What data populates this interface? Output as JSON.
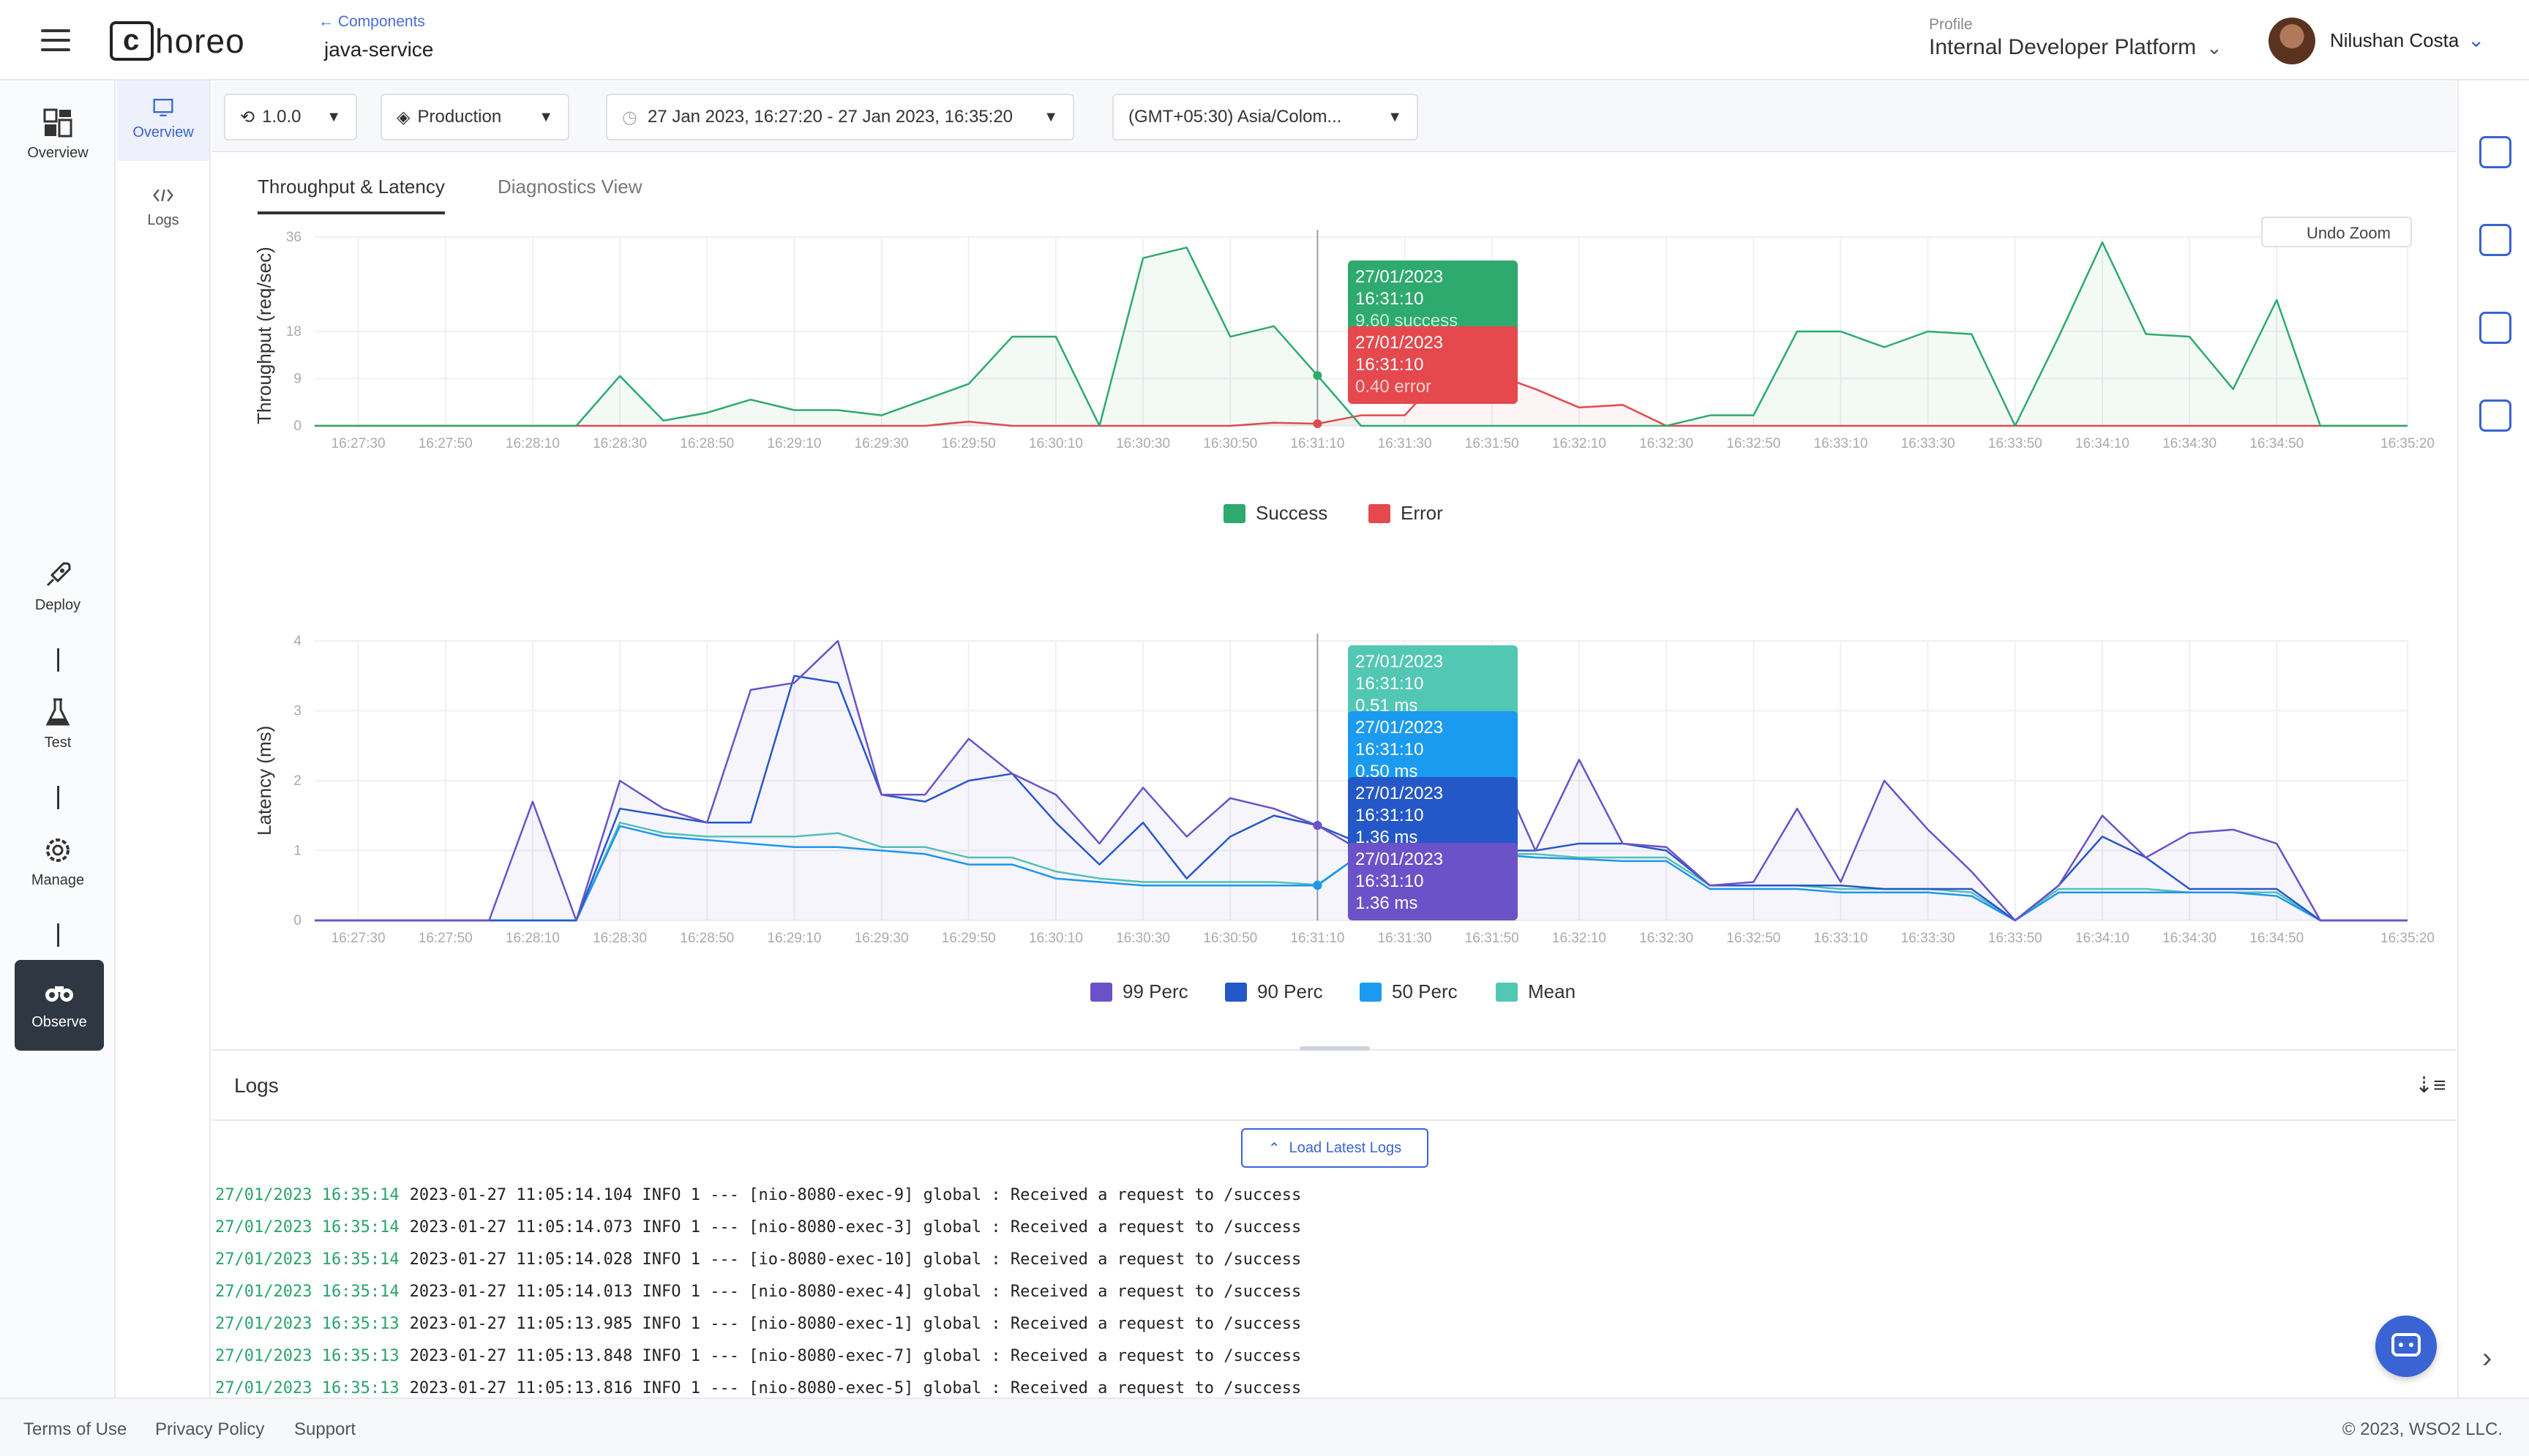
{
  "header": {
    "logo_text": "horeo",
    "breadcrumb_back": "← Components",
    "component_name": "java-service",
    "profile_label": "Profile",
    "profile_value": "Internal Developer Platform",
    "user_name": "Nilushan Costa"
  },
  "left_nav": {
    "items": [
      {
        "label": "Overview",
        "icon": "overview-icon"
      },
      {
        "label": "Deploy",
        "icon": "rocket-icon"
      },
      {
        "label": "Test",
        "icon": "flask-icon"
      },
      {
        "label": "Manage",
        "icon": "gear-icon"
      },
      {
        "label": "Observe",
        "icon": "binoculars-icon",
        "active": true
      }
    ]
  },
  "sub_nav": {
    "items": [
      {
        "label": "Overview",
        "icon": "monitor-icon",
        "active": true
      },
      {
        "label": "Logs",
        "icon": "code-icon"
      }
    ]
  },
  "filters": {
    "version": "1.0.0",
    "environment": "Production",
    "time_range": "27 Jan 2023, 16:27:20 - 27 Jan 2023, 16:35:20",
    "timezone": "(GMT+05:30) Asia/Colom..."
  },
  "tabs": [
    "Throughput & Latency",
    "Diagnostics View"
  ],
  "undo_zoom": "Undo Zoom",
  "colors": {
    "success": "#2eaa6e",
    "error": "#e5484d",
    "p99": "#6b52c8",
    "p90": "#2458c9",
    "p50": "#1a9bf0",
    "mean": "#52c7b3",
    "accent": "#3a63d3"
  },
  "chart_data": [
    {
      "type": "line",
      "ylabel": "Throughput (req/sec)",
      "x": [
        "16:27:20",
        "16:27:30",
        "16:27:40",
        "16:27:50",
        "16:28:00",
        "16:28:10",
        "16:28:20",
        "16:28:30",
        "16:28:40",
        "16:28:50",
        "16:29:00",
        "16:29:10",
        "16:29:20",
        "16:29:30",
        "16:29:40",
        "16:29:50",
        "16:30:00",
        "16:30:10",
        "16:30:20",
        "16:30:30",
        "16:30:40",
        "16:30:50",
        "16:31:00",
        "16:31:10",
        "16:31:20",
        "16:31:30",
        "16:31:40",
        "16:31:50",
        "16:32:00",
        "16:32:10",
        "16:32:20",
        "16:32:30",
        "16:32:40",
        "16:32:50",
        "16:33:00",
        "16:33:10",
        "16:33:20",
        "16:33:30",
        "16:33:40",
        "16:33:50",
        "16:34:00",
        "16:34:10",
        "16:34:20",
        "16:34:30",
        "16:34:40",
        "16:34:50",
        "16:35:00",
        "16:35:10",
        "16:35:20"
      ],
      "tick_labels": [
        "16:27:30",
        "16:27:50",
        "16:28:10",
        "16:28:30",
        "16:28:50",
        "16:29:10",
        "16:29:30",
        "16:29:50",
        "16:30:10",
        "16:30:30",
        "16:30:50",
        "16:31:10",
        "16:31:30",
        "16:31:50",
        "16:32:10",
        "16:32:30",
        "16:32:50",
        "16:33:10",
        "16:33:30",
        "16:33:50",
        "16:34:10",
        "16:34:30",
        "16:34:50",
        "16:35:20"
      ],
      "y_ticks": [
        "0",
        "9",
        "18",
        "36"
      ],
      "ylim": [
        0,
        36
      ],
      "series": [
        {
          "name": "Success",
          "values": [
            0,
            0,
            0,
            0,
            0,
            0,
            0,
            9.5,
            1,
            2.5,
            5,
            3,
            3,
            2,
            5,
            8,
            17,
            17,
            0,
            32,
            34,
            17,
            19,
            9.6,
            0,
            0,
            0,
            0,
            0,
            0,
            0,
            0,
            2,
            2,
            18,
            18,
            15,
            18,
            17.5,
            0,
            17,
            35,
            17.5,
            17,
            7,
            24,
            0,
            0,
            0
          ]
        },
        {
          "name": "Error",
          "values": [
            0,
            0,
            0,
            0,
            0,
            0,
            0,
            0,
            0,
            0,
            0,
            0,
            0,
            0,
            0,
            0.8,
            0,
            0,
            0,
            0,
            0,
            0,
            0.6,
            0.4,
            2,
            2,
            11,
            10,
            7,
            3.5,
            4,
            0,
            0,
            0,
            0,
            0,
            0,
            0,
            0,
            0,
            0,
            0,
            0,
            0,
            0,
            0,
            0,
            0,
            0
          ]
        }
      ],
      "tooltips": [
        {
          "time": "27/01/2023 16:31:10",
          "value": "9.60 success"
        },
        {
          "time": "27/01/2023 16:31:10",
          "value": "0.40 error"
        }
      ]
    },
    {
      "type": "line",
      "ylabel": "Latency (ms)",
      "x": [
        "16:27:20",
        "16:27:30",
        "16:27:40",
        "16:27:50",
        "16:28:00",
        "16:28:10",
        "16:28:20",
        "16:28:30",
        "16:28:40",
        "16:28:50",
        "16:29:00",
        "16:29:10",
        "16:29:20",
        "16:29:30",
        "16:29:40",
        "16:29:50",
        "16:30:00",
        "16:30:10",
        "16:30:20",
        "16:30:30",
        "16:30:40",
        "16:30:50",
        "16:31:00",
        "16:31:10",
        "16:31:20",
        "16:31:30",
        "16:31:40",
        "16:31:50",
        "16:32:00",
        "16:32:10",
        "16:32:20",
        "16:32:30",
        "16:32:40",
        "16:32:50",
        "16:33:00",
        "16:33:10",
        "16:33:20",
        "16:33:30",
        "16:33:40",
        "16:33:50",
        "16:34:00",
        "16:34:10",
        "16:34:20",
        "16:34:30",
        "16:34:40",
        "16:34:50",
        "16:35:00",
        "16:35:10",
        "16:35:20"
      ],
      "tick_labels": [
        "16:27:30",
        "16:27:50",
        "16:28:10",
        "16:28:30",
        "16:28:50",
        "16:29:10",
        "16:29:30",
        "16:29:50",
        "16:30:10",
        "16:30:30",
        "16:30:50",
        "16:31:10",
        "16:31:30",
        "16:31:50",
        "16:32:10",
        "16:32:30",
        "16:32:50",
        "16:33:10",
        "16:33:30",
        "16:33:50",
        "16:34:10",
        "16:34:30",
        "16:34:50",
        "16:35:20"
      ],
      "y_ticks": [
        "0",
        "1",
        "2",
        "3",
        "4"
      ],
      "ylim": [
        0,
        4
      ],
      "series": [
        {
          "name": "99 Perc",
          "values": [
            0,
            0,
            0,
            0,
            0,
            1.7,
            0,
            2,
            1.6,
            1.4,
            3.3,
            3.4,
            4,
            1.8,
            1.8,
            2.6,
            2.1,
            1.8,
            1.1,
            1.9,
            1.2,
            1.75,
            1.6,
            1.36,
            1.0,
            1.0,
            1.0,
            2.4,
            1.0,
            2.3,
            1.1,
            1.05,
            0.5,
            0.55,
            1.6,
            0.55,
            2.0,
            1.3,
            0.7,
            0,
            0.5,
            1.5,
            0.9,
            1.25,
            1.3,
            1.1,
            0,
            0,
            0
          ]
        },
        {
          "name": "90 Perc",
          "values": [
            0,
            0,
            0,
            0,
            0,
            0,
            0,
            1.6,
            1.5,
            1.4,
            1.4,
            3.5,
            3.4,
            1.8,
            1.7,
            2.0,
            2.1,
            1.4,
            0.8,
            1.4,
            0.6,
            1.2,
            1.5,
            1.36,
            1.1,
            1.0,
            1.2,
            1.0,
            1.0,
            1.1,
            1.1,
            1.0,
            0.5,
            0.5,
            0.5,
            0.5,
            0.45,
            0.45,
            0.45,
            0,
            0.5,
            1.2,
            0.9,
            0.45,
            0.45,
            0.45,
            0,
            0,
            0
          ]
        },
        {
          "name": "50 Perc",
          "values": [
            0,
            0,
            0,
            0,
            0,
            0,
            0,
            1.35,
            1.2,
            1.15,
            1.1,
            1.05,
            1.05,
            1.0,
            0.95,
            0.8,
            0.8,
            0.6,
            0.55,
            0.5,
            0.5,
            0.5,
            0.5,
            0.5,
            0.95,
            1.0,
            0.95,
            0.95,
            0.9,
            0.88,
            0.85,
            0.85,
            0.45,
            0.45,
            0.45,
            0.4,
            0.4,
            0.4,
            0.35,
            0,
            0.4,
            0.4,
            0.4,
            0.4,
            0.4,
            0.35,
            0,
            0,
            0
          ]
        },
        {
          "name": "Mean",
          "values": [
            0,
            0,
            0,
            0,
            0,
            0,
            0,
            1.4,
            1.25,
            1.2,
            1.2,
            1.2,
            1.25,
            1.05,
            1.05,
            0.9,
            0.9,
            0.7,
            0.6,
            0.55,
            0.55,
            0.55,
            0.55,
            0.51,
            0.95,
            1.0,
            1.0,
            0.95,
            0.95,
            0.9,
            0.9,
            0.9,
            0.5,
            0.5,
            0.5,
            0.45,
            0.45,
            0.45,
            0.4,
            0,
            0.45,
            0.45,
            0.45,
            0.4,
            0.4,
            0.4,
            0,
            0,
            0
          ]
        }
      ],
      "tooltips": [
        {
          "time": "27/01/2023 16:31:10",
          "value": "0.51 ms"
        },
        {
          "time": "27/01/2023 16:31:10",
          "value": "0.50 ms"
        },
        {
          "time": "27/01/2023 16:31:10",
          "value": "1.36 ms"
        },
        {
          "time": "27/01/2023 16:31:10",
          "value": "1.36 ms"
        }
      ]
    }
  ],
  "logs": {
    "title": "Logs",
    "load_latest": "Load Latest Logs",
    "lines": [
      {
        "ts": "27/01/2023 16:35:14",
        "msg": "2023-01-27 11:05:14.104 INFO 1 --- [nio-8080-exec-9] global : Received a request to /success"
      },
      {
        "ts": "27/01/2023 16:35:14",
        "msg": "2023-01-27 11:05:14.073 INFO 1 --- [nio-8080-exec-3] global : Received a request to /success"
      },
      {
        "ts": "27/01/2023 16:35:14",
        "msg": "2023-01-27 11:05:14.028 INFO 1 --- [io-8080-exec-10] global : Received a request to /success"
      },
      {
        "ts": "27/01/2023 16:35:14",
        "msg": "2023-01-27 11:05:14.013 INFO 1 --- [nio-8080-exec-4] global : Received a request to /success"
      },
      {
        "ts": "27/01/2023 16:35:13",
        "msg": "2023-01-27 11:05:13.985 INFO 1 --- [nio-8080-exec-1] global : Received a request to /success"
      },
      {
        "ts": "27/01/2023 16:35:13",
        "msg": "2023-01-27 11:05:13.848 INFO 1 --- [nio-8080-exec-7] global : Received a request to /success"
      },
      {
        "ts": "27/01/2023 16:35:13",
        "msg": "2023-01-27 11:05:13.816 INFO 1 --- [nio-8080-exec-5] global : Received a request to /success"
      }
    ]
  },
  "footer": {
    "links": [
      "Terms of Use",
      "Privacy Policy",
      "Support"
    ],
    "copyright": "© 2023, WSO2 LLC."
  }
}
